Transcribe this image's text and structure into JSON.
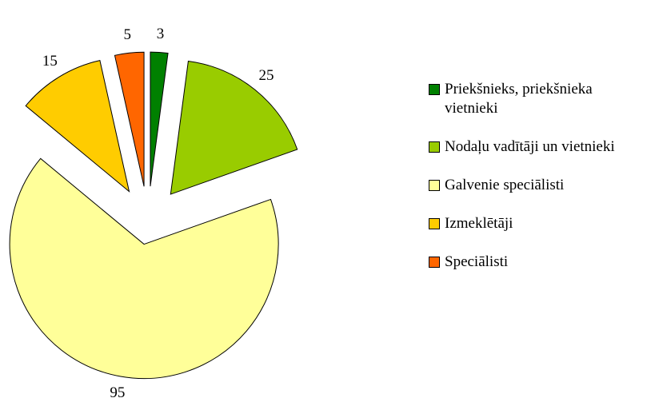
{
  "chart_data": {
    "type": "pie",
    "categories": [
      "Priekšnieks, priekšnieka vietnieki",
      "Nodaļu vadītāji un vietnieki",
      "Galvenie speciālisti",
      "Izmeklētāji",
      "Speciālisti"
    ],
    "values": [
      3,
      25,
      95,
      15,
      5
    ],
    "colors": [
      "#008000",
      "#99cc00",
      "#ffff99",
      "#ffcc00",
      "#ff6600"
    ],
    "legend": "right"
  }
}
